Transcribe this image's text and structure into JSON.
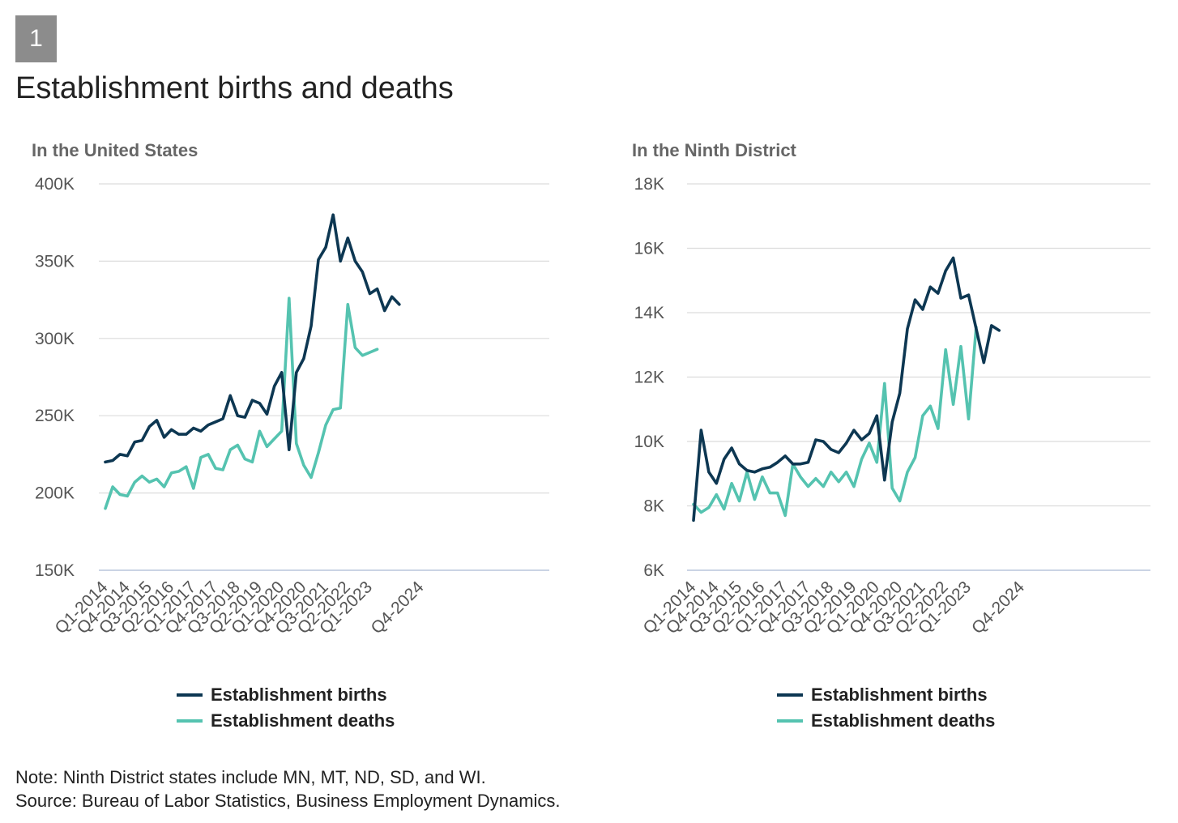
{
  "figure": {
    "number": "1",
    "title": "Establishment births and deaths",
    "note": "Note: Ninth District states include MN, MT, ND, SD, and WI.",
    "source": "Source: Bureau of Labor Statistics, Business Employment Dynamics."
  },
  "colors": {
    "births": "#0d3752",
    "deaths": "#55c3b0",
    "grid": "#dcdcdc",
    "axis": "#b9c6dc",
    "tick_text": "#555555"
  },
  "chart_data": [
    {
      "type": "line",
      "title": "In the United States",
      "categories": [
        "Q1-2014",
        "Q2-2014",
        "Q3-2014",
        "Q4-2014",
        "Q1-2015",
        "Q2-2015",
        "Q3-2015",
        "Q4-2015",
        "Q1-2016",
        "Q2-2016",
        "Q3-2016",
        "Q4-2016",
        "Q1-2017",
        "Q2-2017",
        "Q3-2017",
        "Q4-2017",
        "Q1-2018",
        "Q2-2018",
        "Q3-2018",
        "Q4-2018",
        "Q1-2019",
        "Q2-2019",
        "Q3-2019",
        "Q4-2019",
        "Q1-2020",
        "Q2-2020",
        "Q3-2020",
        "Q4-2020",
        "Q1-2021",
        "Q2-2021",
        "Q3-2021",
        "Q4-2021",
        "Q1-2022",
        "Q2-2022",
        "Q3-2022",
        "Q4-2022",
        "Q1-2023",
        "Q2-2023",
        "Q3-2023",
        "Q4-2023",
        "Q1-2024",
        "Q2-2024",
        "Q3-2024",
        "Q4-2024",
        "Q1-2025"
      ],
      "tick_labels": [
        "Q1-2014",
        "Q4-2014",
        "Q3-2015",
        "Q2-2016",
        "Q1-2017",
        "Q4-2017",
        "Q3-2018",
        "Q2-2019",
        "Q1-2020",
        "Q4-2020",
        "Q3-2021",
        "Q2-2022",
        "Q1-2023",
        "Q4-2024"
      ],
      "ylim": [
        150000,
        400000
      ],
      "yticks": [
        150000,
        200000,
        250000,
        300000,
        350000,
        400000
      ],
      "ytick_labels": [
        "150K",
        "200K",
        "250K",
        "300K",
        "350K",
        "400K"
      ],
      "series": [
        {
          "name": "Establishment births",
          "values": [
            220000,
            221000,
            225000,
            224000,
            233000,
            234000,
            243000,
            247000,
            236000,
            241000,
            238000,
            238000,
            242000,
            240000,
            244000,
            246000,
            248000,
            263000,
            250000,
            249000,
            260000,
            258000,
            251000,
            269000,
            278000,
            228000,
            278000,
            287000,
            308000,
            351000,
            359000,
            380000,
            350000,
            365000,
            350000,
            343000,
            329000,
            332000,
            318000,
            327000,
            322000,
            null,
            null,
            null,
            null
          ]
        },
        {
          "name": "Establishment deaths",
          "values": [
            190000,
            204000,
            199000,
            198000,
            207000,
            211000,
            207000,
            209000,
            204000,
            213000,
            214000,
            217000,
            203000,
            223000,
            225000,
            216000,
            215000,
            228000,
            231000,
            222000,
            220000,
            240000,
            230000,
            235000,
            240000,
            326000,
            232000,
            218000,
            210000,
            226000,
            244000,
            254000,
            255000,
            322000,
            294000,
            289000,
            291000,
            293000,
            null,
            null,
            null,
            null,
            null,
            null,
            null
          ]
        }
      ]
    },
    {
      "type": "line",
      "title": "In the Ninth District",
      "categories": [
        "Q1-2014",
        "Q2-2014",
        "Q3-2014",
        "Q4-2014",
        "Q1-2015",
        "Q2-2015",
        "Q3-2015",
        "Q4-2015",
        "Q1-2016",
        "Q2-2016",
        "Q3-2016",
        "Q4-2016",
        "Q1-2017",
        "Q2-2017",
        "Q3-2017",
        "Q4-2017",
        "Q1-2018",
        "Q2-2018",
        "Q3-2018",
        "Q4-2018",
        "Q1-2019",
        "Q2-2019",
        "Q3-2019",
        "Q4-2019",
        "Q1-2020",
        "Q2-2020",
        "Q3-2020",
        "Q4-2020",
        "Q1-2021",
        "Q2-2021",
        "Q3-2021",
        "Q4-2021",
        "Q1-2022",
        "Q2-2022",
        "Q3-2022",
        "Q4-2022",
        "Q1-2023",
        "Q2-2023",
        "Q3-2023",
        "Q4-2023",
        "Q1-2024",
        "Q2-2024",
        "Q3-2024",
        "Q4-2024",
        "Q1-2025"
      ],
      "tick_labels": [
        "Q1-2014",
        "Q4-2014",
        "Q3-2015",
        "Q2-2016",
        "Q1-2017",
        "Q4-2017",
        "Q3-2018",
        "Q2-2019",
        "Q1-2020",
        "Q4-2020",
        "Q3-2021",
        "Q2-2022",
        "Q1-2023",
        "Q4-2024"
      ],
      "ylim": [
        6000,
        18000
      ],
      "yticks": [
        6000,
        8000,
        10000,
        12000,
        14000,
        16000,
        18000
      ],
      "ytick_labels": [
        "6K",
        "8K",
        "10K",
        "12K",
        "14K",
        "16K",
        "18K"
      ],
      "series": [
        {
          "name": "Establishment births",
          "values": [
            7550,
            10350,
            9050,
            8700,
            9450,
            9800,
            9300,
            9100,
            9050,
            9150,
            9200,
            9350,
            9550,
            9300,
            9300,
            9350,
            10050,
            10000,
            9750,
            9650,
            9950,
            10350,
            10050,
            10250,
            10800,
            8800,
            10600,
            11500,
            13500,
            14400,
            14100,
            14800,
            14600,
            15300,
            15700,
            14450,
            14550,
            13500,
            12450,
            13600,
            13450,
            null,
            null,
            null,
            null
          ]
        },
        {
          "name": "Establishment deaths",
          "values": [
            8050,
            7800,
            7950,
            8350,
            7900,
            8700,
            8150,
            9050,
            8200,
            8900,
            8400,
            8400,
            7700,
            9300,
            8900,
            8600,
            8850,
            8600,
            9050,
            8750,
            9050,
            8600,
            9450,
            9950,
            9350,
            11800,
            8550,
            8150,
            9050,
            9500,
            10800,
            11100,
            10400,
            12850,
            11150,
            12950,
            10700,
            13550,
            null,
            null,
            null,
            null,
            null,
            null,
            null
          ]
        }
      ]
    }
  ]
}
